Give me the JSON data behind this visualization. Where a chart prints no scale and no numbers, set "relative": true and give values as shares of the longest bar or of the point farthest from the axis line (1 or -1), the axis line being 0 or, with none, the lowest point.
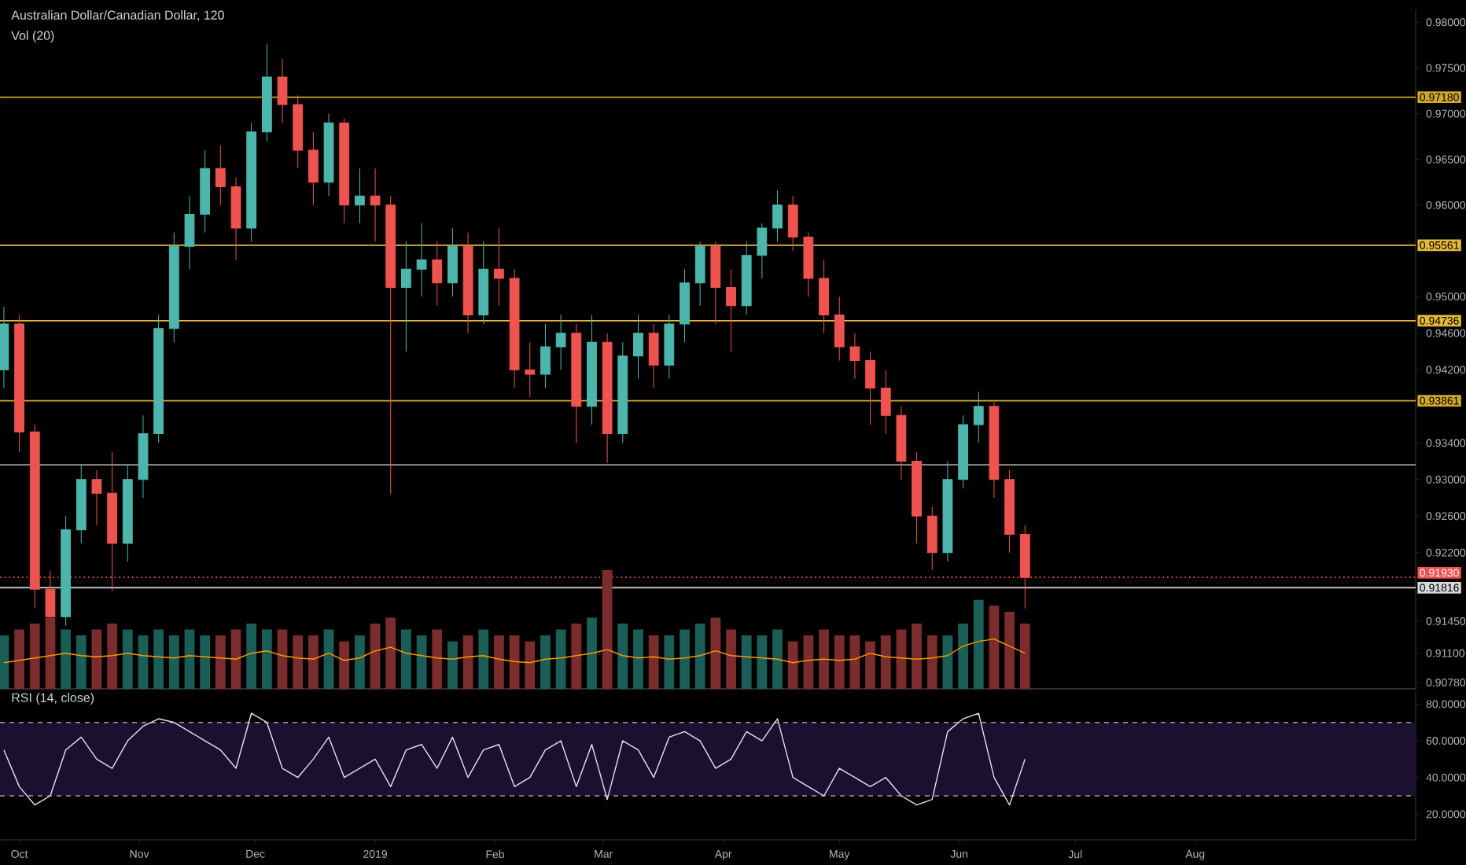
{
  "chart_data": [
    {
      "type": "candlestick",
      "title": "Australian Dollar/Canadian Dollar, 120",
      "x": [
        "2018-09-27",
        "2018-10-01",
        "2018-10-05",
        "2018-10-09",
        "2018-10-13",
        "2018-10-17",
        "2018-10-21",
        "2018-10-25",
        "2018-10-29",
        "2018-11-02",
        "2018-11-06",
        "2018-11-10",
        "2018-11-14",
        "2018-11-18",
        "2018-11-22",
        "2018-11-26",
        "2018-11-30",
        "2018-12-04",
        "2018-12-08",
        "2018-12-12",
        "2018-12-16",
        "2018-12-20",
        "2018-12-24",
        "2018-12-28",
        "2019-01-01",
        "2019-01-05",
        "2019-01-09",
        "2019-01-13",
        "2019-01-17",
        "2019-01-21",
        "2019-01-25",
        "2019-01-29",
        "2019-02-02",
        "2019-02-06",
        "2019-02-10",
        "2019-02-14",
        "2019-02-18",
        "2019-02-22",
        "2019-02-26",
        "2019-03-02",
        "2019-03-06",
        "2019-03-10",
        "2019-03-14",
        "2019-03-18",
        "2019-03-22",
        "2019-03-26",
        "2019-03-30",
        "2019-04-03",
        "2019-04-07",
        "2019-04-11",
        "2019-04-15",
        "2019-04-19",
        "2019-04-23",
        "2019-04-27",
        "2019-05-01",
        "2019-05-05",
        "2019-05-09",
        "2019-05-13",
        "2019-05-17",
        "2019-05-21",
        "2019-05-25",
        "2019-05-29",
        "2019-06-02",
        "2019-06-06",
        "2019-06-10",
        "2019-06-14",
        "2019-06-18"
      ],
      "ohlc": [
        [
          0.942,
          0.9489,
          0.94,
          0.947
        ],
        [
          0.947,
          0.948,
          0.933,
          0.9352
        ],
        [
          0.9352,
          0.936,
          0.916,
          0.918
        ],
        [
          0.918,
          0.92,
          0.9109,
          0.915
        ],
        [
          0.915,
          0.926,
          0.914,
          0.9245
        ],
        [
          0.9245,
          0.9316,
          0.923,
          0.93
        ],
        [
          0.93,
          0.931,
          0.925,
          0.9285
        ],
        [
          0.9285,
          0.933,
          0.9178,
          0.923
        ],
        [
          0.923,
          0.9316,
          0.921,
          0.93
        ],
        [
          0.93,
          0.937,
          0.928,
          0.935
        ],
        [
          0.935,
          0.948,
          0.934,
          0.9465
        ],
        [
          0.9465,
          0.957,
          0.945,
          0.9555
        ],
        [
          0.9555,
          0.961,
          0.953,
          0.959
        ],
        [
          0.959,
          0.966,
          0.957,
          0.964
        ],
        [
          0.964,
          0.9665,
          0.96,
          0.962
        ],
        [
          0.962,
          0.963,
          0.954,
          0.9575
        ],
        [
          0.9575,
          0.969,
          0.956,
          0.968
        ],
        [
          0.968,
          0.9776,
          0.967,
          0.974
        ],
        [
          0.974,
          0.976,
          0.969,
          0.971
        ],
        [
          0.971,
          0.972,
          0.964,
          0.966
        ],
        [
          0.966,
          0.968,
          0.96,
          0.9625
        ],
        [
          0.9625,
          0.97,
          0.961,
          0.969
        ],
        [
          0.969,
          0.9695,
          0.958,
          0.96
        ],
        [
          0.96,
          0.964,
          0.958,
          0.961
        ],
        [
          0.961,
          0.964,
          0.956,
          0.96
        ],
        [
          0.96,
          0.961,
          0.9284,
          0.951
        ],
        [
          0.951,
          0.956,
          0.944,
          0.953
        ],
        [
          0.953,
          0.958,
          0.95,
          0.954
        ],
        [
          0.954,
          0.956,
          0.949,
          0.9515
        ],
        [
          0.9515,
          0.9575,
          0.95,
          0.9555
        ],
        [
          0.9555,
          0.957,
          0.946,
          0.948
        ],
        [
          0.948,
          0.956,
          0.947,
          0.953
        ],
        [
          0.953,
          0.9575,
          0.949,
          0.952
        ],
        [
          0.952,
          0.953,
          0.94,
          0.942
        ],
        [
          0.942,
          0.945,
          0.939,
          0.9415
        ],
        [
          0.9415,
          0.947,
          0.94,
          0.9445
        ],
        [
          0.9445,
          0.948,
          0.942,
          0.946
        ],
        [
          0.946,
          0.947,
          0.934,
          0.938
        ],
        [
          0.938,
          0.948,
          0.936,
          0.945
        ],
        [
          0.945,
          0.946,
          0.9318,
          0.935
        ],
        [
          0.935,
          0.945,
          0.934,
          0.9435
        ],
        [
          0.9435,
          0.948,
          0.941,
          0.946
        ],
        [
          0.946,
          0.947,
          0.94,
          0.9425
        ],
        [
          0.9425,
          0.948,
          0.941,
          0.947
        ],
        [
          0.947,
          0.953,
          0.945,
          0.9515
        ],
        [
          0.9515,
          0.956,
          0.949,
          0.9555
        ],
        [
          0.9555,
          0.956,
          0.947,
          0.951
        ],
        [
          0.951,
          0.953,
          0.944,
          0.949
        ],
        [
          0.949,
          0.956,
          0.948,
          0.9545
        ],
        [
          0.9545,
          0.958,
          0.952,
          0.9575
        ],
        [
          0.9575,
          0.9616,
          0.956,
          0.96
        ],
        [
          0.96,
          0.961,
          0.955,
          0.9565
        ],
        [
          0.9565,
          0.957,
          0.95,
          0.952
        ],
        [
          0.952,
          0.954,
          0.946,
          0.948
        ],
        [
          0.948,
          0.95,
          0.943,
          0.9445
        ],
        [
          0.9445,
          0.946,
          0.941,
          0.943
        ],
        [
          0.943,
          0.944,
          0.936,
          0.94
        ],
        [
          0.94,
          0.942,
          0.935,
          0.937
        ],
        [
          0.937,
          0.938,
          0.93,
          0.932
        ],
        [
          0.932,
          0.933,
          0.923,
          0.926
        ],
        [
          0.926,
          0.927,
          0.9201,
          0.922
        ],
        [
          0.922,
          0.932,
          0.921,
          0.93
        ],
        [
          0.93,
          0.937,
          0.929,
          0.936
        ],
        [
          0.936,
          0.9396,
          0.934,
          0.938
        ],
        [
          0.938,
          0.9385,
          0.928,
          0.93
        ],
        [
          0.93,
          0.931,
          0.922,
          0.924
        ],
        [
          0.924,
          0.925,
          0.9159,
          0.9193
        ]
      ],
      "colors": [
        "#4db6ac",
        "#ef5350",
        "#ef5350",
        "#ef5350",
        "#4db6ac",
        "#4db6ac",
        "#ef5350",
        "#ef5350",
        "#4db6ac",
        "#4db6ac",
        "#4db6ac",
        "#4db6ac",
        "#4db6ac",
        "#4db6ac",
        "#ef5350",
        "#ef5350",
        "#4db6ac",
        "#4db6ac",
        "#ef5350",
        "#ef5350",
        "#ef5350",
        "#4db6ac",
        "#ef5350",
        "#4db6ac",
        "#ef5350",
        "#ef5350",
        "#4db6ac",
        "#4db6ac",
        "#ef5350",
        "#4db6ac",
        "#ef5350",
        "#4db6ac",
        "#ef5350",
        "#ef5350",
        "#ef5350",
        "#4db6ac",
        "#4db6ac",
        "#ef5350",
        "#4db6ac",
        "#ef5350",
        "#4db6ac",
        "#4db6ac",
        "#ef5350",
        "#4db6ac",
        "#4db6ac",
        "#4db6ac",
        "#ef5350",
        "#ef5350",
        "#4db6ac",
        "#4db6ac",
        "#4db6ac",
        "#ef5350",
        "#ef5350",
        "#ef5350",
        "#ef5350",
        "#ef5350",
        "#ef5350",
        "#ef5350",
        "#ef5350",
        "#ef5350",
        "#ef5350",
        "#4db6ac",
        "#4db6ac",
        "#4db6ac",
        "#ef5350",
        "#ef5350",
        "#ef5350"
      ],
      "xlim": [
        "2018-09-26",
        "2019-09-27"
      ],
      "ylim": [
        0.9071,
        0.9814
      ],
      "yticks": [
        {
          "value": 0.98,
          "label": "0.98000"
        },
        {
          "value": 0.975,
          "label": "0.97500"
        },
        {
          "value": 0.97,
          "label": "0.97000"
        },
        {
          "value": 0.965,
          "label": "0.96500"
        },
        {
          "value": 0.96,
          "label": "0.96000"
        },
        {
          "value": 0.95,
          "label": "0.95000"
        },
        {
          "value": 0.946,
          "label": "0.94600"
        },
        {
          "value": 0.942,
          "label": "0.94200"
        },
        {
          "value": 0.934,
          "label": "0.93400"
        },
        {
          "value": 0.93,
          "label": "0.93000"
        },
        {
          "value": 0.926,
          "label": "0.92600"
        },
        {
          "value": 0.922,
          "label": "0.92200"
        },
        {
          "value": 0.9145,
          "label": "0.91450"
        },
        {
          "value": 0.911,
          "label": "0.91100"
        },
        {
          "value": 0.9078,
          "label": "0.90780"
        }
      ],
      "ref_lines": [
        {
          "axis": "y",
          "value": 0.9718,
          "label": "0.97180",
          "color": "#d4a72c"
        },
        {
          "axis": "y",
          "value": 0.95561,
          "label": "0.95561",
          "color": "#e6b83a"
        },
        {
          "axis": "y",
          "value": 0.94736,
          "label": "0.94736",
          "color": "#e6b83a"
        },
        {
          "axis": "y",
          "value": 0.93861,
          "label": "0.93861",
          "color": "#d4a72c"
        },
        {
          "axis": "y",
          "value": 0.9316,
          "label": null,
          "color": "#9e9e9e"
        },
        {
          "axis": "y",
          "value": 0.9193,
          "label": "0.91930",
          "color": "#ef5350",
          "line_style": "dotted"
        },
        {
          "axis": "y",
          "value": 0.91816,
          "label": "0.91816",
          "color": "#d8d8d8"
        }
      ],
      "tick_labels": "y"
    },
    {
      "type": "bar",
      "title": "Vol (20)",
      "relative": true,
      "x": [
        "2018-09-27",
        "2018-10-01",
        "2018-10-05",
        "2018-10-09",
        "2018-10-13",
        "2018-10-17",
        "2018-10-21",
        "2018-10-25",
        "2018-10-29",
        "2018-11-02",
        "2018-11-06",
        "2018-11-10",
        "2018-11-14",
        "2018-11-18",
        "2018-11-22",
        "2018-11-26",
        "2018-11-30",
        "2018-12-04",
        "2018-12-08",
        "2018-12-12",
        "2018-12-16",
        "2018-12-20",
        "2018-12-24",
        "2018-12-28",
        "2019-01-01",
        "2019-01-05",
        "2019-01-09",
        "2019-01-13",
        "2019-01-17",
        "2019-01-21",
        "2019-01-25",
        "2019-01-29",
        "2019-02-02",
        "2019-02-06",
        "2019-02-10",
        "2019-02-14",
        "2019-02-18",
        "2019-02-22",
        "2019-02-26",
        "2019-03-02",
        "2019-03-06",
        "2019-03-10",
        "2019-03-14",
        "2019-03-18",
        "2019-03-22",
        "2019-03-26",
        "2019-03-30",
        "2019-04-03",
        "2019-04-07",
        "2019-04-11",
        "2019-04-15",
        "2019-04-19",
        "2019-04-23",
        "2019-04-27",
        "2019-05-01",
        "2019-05-05",
        "2019-05-09",
        "2019-05-13",
        "2019-05-17",
        "2019-05-21",
        "2019-05-25",
        "2019-05-29",
        "2019-06-02",
        "2019-06-06",
        "2019-06-10",
        "2019-06-14",
        "2019-06-18"
      ],
      "series": [
        {
          "type": "bar",
          "colors": [
            "#1b5e58",
            "#7b2c2c",
            "#7b2c2c",
            "#7b2c2c",
            "#1b5e58",
            "#1b5e58",
            "#7b2c2c",
            "#7b2c2c",
            "#1b5e58",
            "#1b5e58",
            "#1b5e58",
            "#1b5e58",
            "#1b5e58",
            "#1b5e58",
            "#7b2c2c",
            "#7b2c2c",
            "#1b5e58",
            "#1b5e58",
            "#7b2c2c",
            "#7b2c2c",
            "#7b2c2c",
            "#1b5e58",
            "#7b2c2c",
            "#1b5e58",
            "#7b2c2c",
            "#7b2c2c",
            "#1b5e58",
            "#1b5e58",
            "#7b2c2c",
            "#1b5e58",
            "#7b2c2c",
            "#1b5e58",
            "#7b2c2c",
            "#7b2c2c",
            "#7b2c2c",
            "#1b5e58",
            "#1b5e58",
            "#7b2c2c",
            "#1b5e58",
            "#7b2c2c",
            "#1b5e58",
            "#1b5e58",
            "#7b2c2c",
            "#1b5e58",
            "#1b5e58",
            "#1b5e58",
            "#7b2c2c",
            "#7b2c2c",
            "#1b5e58",
            "#1b5e58",
            "#1b5e58",
            "#7b2c2c",
            "#7b2c2c",
            "#7b2c2c",
            "#7b2c2c",
            "#7b2c2c",
            "#7b2c2c",
            "#7b2c2c",
            "#7b2c2c",
            "#7b2c2c",
            "#7b2c2c",
            "#1b5e58",
            "#1b5e58",
            "#1b5e58",
            "#7b2c2c",
            "#7b2c2c",
            "#7b2c2c"
          ],
          "values": [
            0.45,
            0.5,
            0.55,
            0.6,
            0.5,
            0.45,
            0.5,
            0.55,
            0.5,
            0.45,
            0.5,
            0.45,
            0.5,
            0.45,
            0.45,
            0.5,
            0.55,
            0.5,
            0.5,
            0.45,
            0.45,
            0.5,
            0.4,
            0.45,
            0.55,
            0.6,
            0.5,
            0.45,
            0.5,
            0.4,
            0.45,
            0.5,
            0.45,
            0.45,
            0.4,
            0.45,
            0.5,
            0.55,
            0.6,
            1.0,
            0.55,
            0.5,
            0.45,
            0.45,
            0.5,
            0.55,
            0.6,
            0.5,
            0.45,
            0.45,
            0.5,
            0.4,
            0.45,
            0.5,
            0.45,
            0.45,
            0.4,
            0.45,
            0.5,
            0.55,
            0.45,
            0.45,
            0.55,
            0.75,
            0.7,
            0.65,
            0.55
          ]
        },
        {
          "type": "line",
          "color": "#ff9800",
          "values": [
            0.22,
            0.24,
            0.26,
            0.28,
            0.3,
            0.28,
            0.27,
            0.28,
            0.3,
            0.28,
            0.27,
            0.26,
            0.28,
            0.27,
            0.26,
            0.25,
            0.3,
            0.32,
            0.28,
            0.26,
            0.25,
            0.3,
            0.24,
            0.26,
            0.32,
            0.35,
            0.3,
            0.28,
            0.26,
            0.25,
            0.27,
            0.28,
            0.25,
            0.23,
            0.22,
            0.25,
            0.26,
            0.28,
            0.3,
            0.33,
            0.28,
            0.26,
            0.27,
            0.25,
            0.26,
            0.28,
            0.32,
            0.28,
            0.27,
            0.26,
            0.25,
            0.22,
            0.24,
            0.25,
            0.24,
            0.25,
            0.3,
            0.27,
            0.26,
            0.25,
            0.26,
            0.28,
            0.36,
            0.4,
            0.42,
            0.36,
            0.3
          ]
        }
      ],
      "xlim": [
        "2018-09-26",
        "2019-09-27"
      ],
      "tick_labels": false
    },
    {
      "type": "line",
      "title": "RSI (14, close)",
      "x": [
        "2018-09-27",
        "2018-10-01",
        "2018-10-05",
        "2018-10-09",
        "2018-10-13",
        "2018-10-17",
        "2018-10-21",
        "2018-10-25",
        "2018-10-29",
        "2018-11-02",
        "2018-11-06",
        "2018-11-10",
        "2018-11-14",
        "2018-11-18",
        "2018-11-22",
        "2018-11-26",
        "2018-11-30",
        "2018-12-04",
        "2018-12-08",
        "2018-12-12",
        "2018-12-16",
        "2018-12-20",
        "2018-12-24",
        "2018-12-28",
        "2019-01-01",
        "2019-01-05",
        "2019-01-09",
        "2019-01-13",
        "2019-01-17",
        "2019-01-21",
        "2019-01-25",
        "2019-01-29",
        "2019-02-02",
        "2019-02-06",
        "2019-02-10",
        "2019-02-14",
        "2019-02-18",
        "2019-02-22",
        "2019-02-26",
        "2019-03-02",
        "2019-03-06",
        "2019-03-10",
        "2019-03-14",
        "2019-03-18",
        "2019-03-22",
        "2019-03-26",
        "2019-03-30",
        "2019-04-03",
        "2019-04-07",
        "2019-04-11",
        "2019-04-15",
        "2019-04-19",
        "2019-04-23",
        "2019-04-27",
        "2019-05-01",
        "2019-05-05",
        "2019-05-09",
        "2019-05-13",
        "2019-05-17",
        "2019-05-21",
        "2019-05-25",
        "2019-05-29",
        "2019-06-02",
        "2019-06-06",
        "2019-06-10",
        "2019-06-14",
        "2019-06-18"
      ],
      "series": [
        {
          "color": "#e6e0f5",
          "values": [
            55,
            35,
            25,
            30,
            55,
            62,
            50,
            45,
            60,
            68,
            72,
            70,
            65,
            60,
            55,
            45,
            75,
            70,
            45,
            40,
            50,
            62,
            40,
            45,
            50,
            35,
            55,
            58,
            45,
            62,
            40,
            55,
            58,
            35,
            40,
            55,
            60,
            35,
            58,
            28,
            60,
            55,
            40,
            62,
            65,
            60,
            45,
            50,
            65,
            60,
            72,
            40,
            35,
            30,
            45,
            40,
            35,
            40,
            30,
            25,
            28,
            65,
            72,
            75,
            40,
            25,
            50
          ]
        }
      ],
      "xlim": [
        "2018-09-26",
        "2019-09-27"
      ],
      "xticks": [
        {
          "value": "2018-10-01",
          "label": "Oct"
        },
        {
          "value": "2018-11-01",
          "label": "Nov"
        },
        {
          "value": "2018-12-01",
          "label": "Dec"
        },
        {
          "value": "2019-01-01",
          "label": "2019"
        },
        {
          "value": "2019-02-01",
          "label": "Feb"
        },
        {
          "value": "2019-03-01",
          "label": "Mar"
        },
        {
          "value": "2019-04-01",
          "label": "Apr"
        },
        {
          "value": "2019-05-01",
          "label": "May"
        },
        {
          "value": "2019-06-01",
          "label": "Jun"
        },
        {
          "value": "2019-07-01",
          "label": "Jul"
        },
        {
          "value": "2019-08-01",
          "label": "Aug"
        }
      ],
      "ylim": [
        6,
        86.6
      ],
      "yticks": [
        {
          "value": 20,
          "label": "20.0000"
        },
        {
          "value": 40,
          "label": "40.0000"
        },
        {
          "value": 60,
          "label": "60.0000"
        },
        {
          "value": 80,
          "label": "80.0000"
        }
      ],
      "ref_lines": [
        {
          "axis": "y",
          "value": 70,
          "label": null,
          "color": "#9e9e9e",
          "line_style": "dashed"
        },
        {
          "axis": "y",
          "value": 30,
          "label": null,
          "color": "#9e9e9e",
          "line_style": "dashed"
        }
      ],
      "bands": [
        {
          "axis": "y",
          "from": 30,
          "to": 70,
          "label": null,
          "color": "#1c1030"
        }
      ]
    }
  ]
}
